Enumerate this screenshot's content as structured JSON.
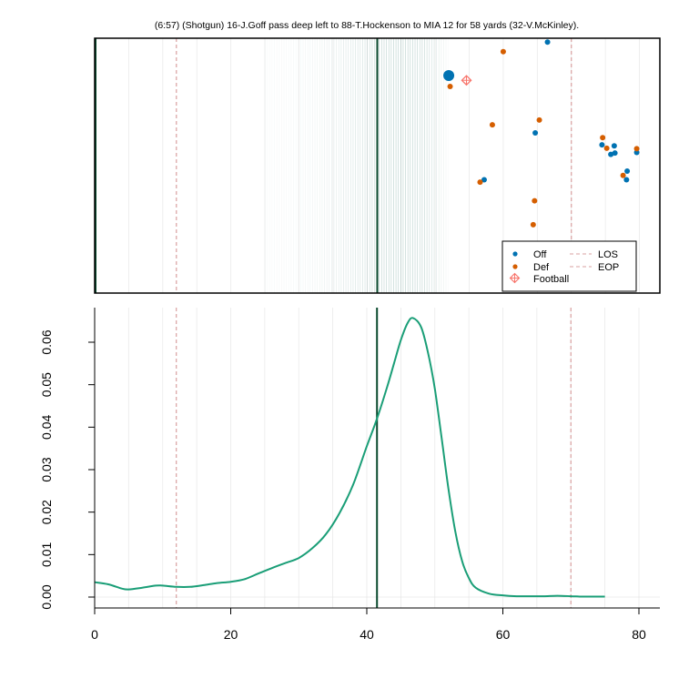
{
  "chart_data": [
    {
      "type": "scatter",
      "title": "(6:57) (Shotgun) 16-J.Goff pass deep left to 88-T.Hockenson to MIA 12 for 58 yards (32-V.McKinley).",
      "xlim": [
        0,
        83
      ],
      "ylim": [
        0,
        53.3
      ],
      "grid": true,
      "legend_position": "bottom-right",
      "legend": [
        "Off",
        "Def",
        "Football",
        "LOS",
        "EOP"
      ],
      "colors": {
        "off": "#0072b2",
        "def": "#d55e00",
        "football": "#f8766d",
        "los": "#d9a0a0",
        "eop": "#d9a0a0",
        "marker_line": "#0a4a2e",
        "shade": "#4d8a80"
      },
      "reference_lines": {
        "los_x": 12,
        "eop_x": 70,
        "marker_x": 41.5
      },
      "shaded_band": [
        25,
        52
      ],
      "series": [
        {
          "name": "Off",
          "points": [
            {
              "x": 66.5,
              "y": 52.5
            },
            {
              "x": 52.0,
              "y": 45.5,
              "highlight": true
            },
            {
              "x": 64.7,
              "y": 33.5
            },
            {
              "x": 74.5,
              "y": 31.0
            },
            {
              "x": 76.3,
              "y": 30.8
            },
            {
              "x": 76.4,
              "y": 29.3
            },
            {
              "x": 75.8,
              "y": 29.0
            },
            {
              "x": 79.6,
              "y": 29.4
            },
            {
              "x": 78.2,
              "y": 25.5
            },
            {
              "x": 78.1,
              "y": 23.7
            },
            {
              "x": 57.2,
              "y": 23.7
            }
          ]
        },
        {
          "name": "Def",
          "points": [
            {
              "x": 60.0,
              "y": 50.5
            },
            {
              "x": 52.2,
              "y": 43.2
            },
            {
              "x": 58.4,
              "y": 35.2
            },
            {
              "x": 65.3,
              "y": 36.2
            },
            {
              "x": 74.6,
              "y": 32.5
            },
            {
              "x": 75.2,
              "y": 30.3
            },
            {
              "x": 79.6,
              "y": 30.2
            },
            {
              "x": 77.6,
              "y": 24.6
            },
            {
              "x": 56.6,
              "y": 23.2
            },
            {
              "x": 64.6,
              "y": 19.3
            },
            {
              "x": 64.4,
              "y": 14.3
            }
          ]
        },
        {
          "name": "Football",
          "points": [
            {
              "x": 54.6,
              "y": 44.5
            }
          ]
        }
      ]
    },
    {
      "type": "line",
      "xlim": [
        0,
        80
      ],
      "ylim": [
        0,
        0.066
      ],
      "x_ticks": [
        "0",
        "20",
        "40",
        "60",
        "80"
      ],
      "y_ticks": [
        "0.00",
        "0.01",
        "0.02",
        "0.03",
        "0.04",
        "0.05",
        "0.06"
      ],
      "grid": true,
      "reference_lines": {
        "los_x": 12,
        "eop_x": 70,
        "marker_x": 41.5
      },
      "series": [
        {
          "color": "#1a9e77",
          "x": [
            0,
            2,
            4,
            5,
            7,
            9,
            10,
            12,
            14,
            16,
            18,
            20,
            22,
            24,
            26,
            28,
            30,
            32,
            34,
            36,
            38,
            40,
            41.5,
            43,
            44,
            45,
            46,
            46.8,
            48,
            49,
            50,
            51,
            52,
            53,
            54,
            55,
            56,
            58,
            60,
            62,
            64,
            66,
            68,
            70,
            72,
            74,
            75
          ],
          "y": [
            0.0035,
            0.003,
            0.002,
            0.0018,
            0.0022,
            0.0027,
            0.0027,
            0.0024,
            0.0024,
            0.0028,
            0.0033,
            0.0036,
            0.0042,
            0.0055,
            0.0068,
            0.008,
            0.0092,
            0.0115,
            0.0148,
            0.0198,
            0.0265,
            0.0355,
            0.042,
            0.0495,
            0.055,
            0.0605,
            0.0645,
            0.0657,
            0.0635,
            0.0575,
            0.049,
            0.0375,
            0.0255,
            0.0155,
            0.0085,
            0.0045,
            0.0022,
            0.0008,
            0.0004,
            0.0002,
            0.0002,
            0.0002,
            0.0003,
            0.0002,
            0.0001,
            0.0001,
            0.0001
          ]
        }
      ]
    }
  ]
}
